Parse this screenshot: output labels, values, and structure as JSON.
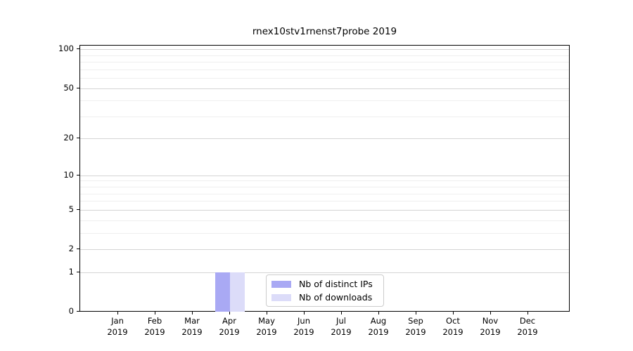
{
  "chart_data": {
    "type": "bar",
    "title": "rnex10stv1rnenst7probe 2019",
    "categories": [
      "Jan",
      "Feb",
      "Mar",
      "Apr",
      "May",
      "Jun",
      "Jul",
      "Aug",
      "Sep",
      "Oct",
      "Nov",
      "Dec"
    ],
    "category_year": "2019",
    "series": [
      {
        "name": "Nb of distinct IPs",
        "color": "#a9a9f4",
        "values": [
          0,
          0,
          0,
          1,
          0,
          0,
          0,
          0,
          0,
          0,
          0,
          0
        ]
      },
      {
        "name": "Nb of downloads",
        "color": "#dcdcf9",
        "values": [
          0,
          0,
          0,
          1,
          0,
          0,
          0,
          0,
          0,
          0,
          0,
          0
        ]
      }
    ],
    "yscale": "log1p",
    "ylim": [
      0,
      108
    ],
    "yticks_major": [
      0,
      1,
      2,
      5,
      10,
      20,
      50,
      100
    ],
    "yticks_minor": [
      3,
      4,
      6,
      7,
      8,
      9,
      30,
      40,
      60,
      70,
      80,
      90
    ],
    "grid": "horizontal",
    "legend_position": "bottom-center",
    "colors": {
      "grid_major": "#d4d4d4",
      "grid_minor": "#efefef",
      "spine": "#000000",
      "legend_border": "#cccccc",
      "text": "#000000"
    }
  }
}
